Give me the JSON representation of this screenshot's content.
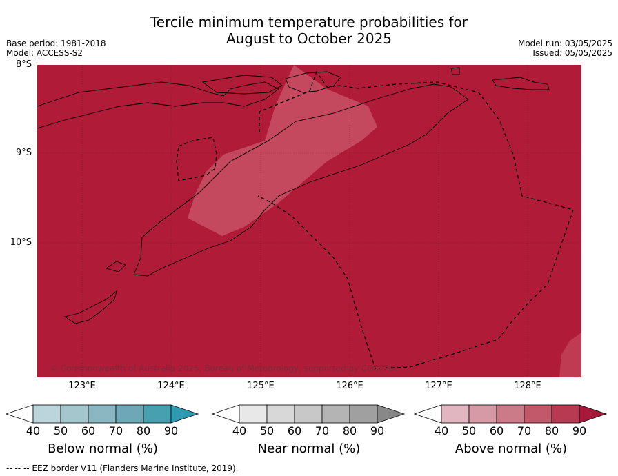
{
  "title_line1": "Tercile minimum temperature probabilities for",
  "title_line2": "August to October 2025",
  "base_period": "Base period: 1981-2018",
  "model": "Model: ACCESS-S2",
  "model_run": "Model run: 03/05/2025",
  "issued": "Issued: 05/05/2025",
  "map": {
    "background_color": "#b01c38",
    "highlight_color": "#c4485e",
    "lat_labels": [
      "8°S",
      "9°S",
      "10°S"
    ],
    "lon_labels": [
      "123°E",
      "124°E",
      "125°E",
      "126°E",
      "127°E",
      "128°E"
    ],
    "copyright": "© Commonwealth of Australia 2025, Bureau of Meteorology, supported by COSPPac"
  },
  "colorbars": [
    {
      "title": "Below normal (%)",
      "colors": [
        "#bcd5dc",
        "#a4c6cd",
        "#8ab7c1",
        "#6ea8b6",
        "#47a0b0",
        "#2e9bb0"
      ],
      "ticks": [
        "40",
        "50",
        "60",
        "70",
        "80",
        "90"
      ]
    },
    {
      "title": "Near normal (%)",
      "colors": [
        "#e8e8e8",
        "#d8d8d8",
        "#c8c8c8",
        "#b4b4b4",
        "#a0a0a0",
        "#888888"
      ],
      "ticks": [
        "40",
        "50",
        "60",
        "70",
        "80",
        "90"
      ]
    },
    {
      "title": "Above normal (%)",
      "colors": [
        "#e2b6c0",
        "#d69aa6",
        "#cb7a88",
        "#c2596b",
        "#b83a52",
        "#a8183a"
      ],
      "ticks": [
        "40",
        "50",
        "60",
        "70",
        "80",
        "90"
      ]
    }
  ],
  "footer": "--  --  -- EEZ border V11 (Flanders Marine Institute, 2019)."
}
